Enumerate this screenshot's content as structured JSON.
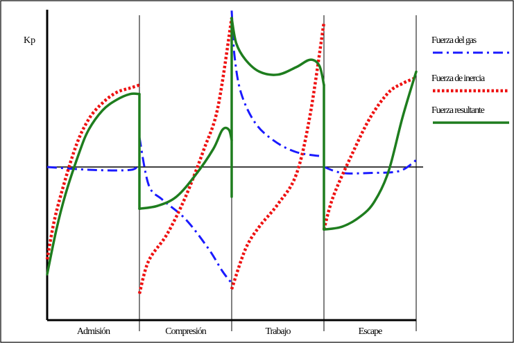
{
  "chart_data": {
    "type": "line",
    "ylabel": "Kp",
    "xlabel": "",
    "title": "",
    "categories": [
      "Admisión",
      "Compresión",
      "Trabajo",
      "Escape"
    ],
    "x": [
      0,
      0.05,
      0.1,
      0.15,
      0.2,
      0.25,
      0.3,
      0.35,
      0.4,
      0.45,
      0.5,
      0.55,
      0.6,
      0.65,
      0.7,
      0.75,
      0.8,
      0.85,
      0.9,
      0.95,
      1.0,
      1.05,
      1.1,
      1.15,
      1.2,
      1.25,
      1.3,
      1.35,
      1.4,
      1.45,
      1.5,
      1.55,
      1.6,
      1.65,
      1.7,
      1.75,
      1.8,
      1.85,
      1.9,
      1.95,
      2.0,
      2.05,
      2.1,
      2.15,
      2.2,
      2.25,
      2.3,
      2.35,
      2.4,
      2.45,
      2.5,
      2.55,
      2.6,
      2.65,
      2.7,
      2.75,
      2.8,
      2.85,
      2.9,
      2.95,
      3.0,
      3.05,
      3.1,
      3.15,
      3.2,
      3.25,
      3.3,
      3.35,
      3.4,
      3.45,
      3.5,
      3.55,
      3.6,
      3.65,
      3.7,
      3.75,
      3.8,
      3.85,
      3.9,
      3.95,
      4.0
    ],
    "ylim": [
      -1.0,
      1.0
    ],
    "series": [
      {
        "name": "Fuerza del gas",
        "color": "#1a1aff",
        "dash": "dashdot",
        "segments": [
          {
            "x": [
              0.0,
              0.5,
              0.9,
              0.98,
              1.0
            ],
            "y": [
              0.0,
              -0.02,
              -0.02,
              0.01,
              0.02
            ]
          },
          {
            "x": [
              1.0,
              1.1,
              1.25,
              1.5,
              1.75,
              1.9,
              2.0
            ],
            "y": [
              0.2,
              -0.12,
              -0.22,
              -0.35,
              -0.55,
              -0.7,
              -0.78
            ]
          },
          {
            "x": [
              2.0,
              2.03,
              2.1,
              2.25,
              2.45,
              2.7,
              3.0
            ],
            "y": [
              1.05,
              0.75,
              0.5,
              0.3,
              0.18,
              0.1,
              0.07
            ]
          },
          {
            "x": [
              3.0,
              3.2,
              3.5,
              3.8,
              3.95,
              4.0
            ],
            "y": [
              0.0,
              -0.04,
              -0.04,
              -0.03,
              0.02,
              0.05
            ]
          }
        ]
      },
      {
        "name": "Fuerza de inercia",
        "color": "#ee1111",
        "dash": "dotted",
        "segments": [
          {
            "x": [
              0.0,
              0.1,
              0.3,
              0.45,
              0.6,
              0.75,
              0.9,
              1.0
            ],
            "y": [
              -0.62,
              -0.3,
              0.12,
              0.32,
              0.43,
              0.5,
              0.53,
              0.55
            ]
          },
          {
            "x": [
              1.0,
              1.1,
              1.3,
              1.5,
              1.7,
              1.85,
              2.0
            ],
            "y": [
              -0.85,
              -0.63,
              -0.45,
              -0.2,
              0.12,
              0.4,
              1.0
            ]
          },
          {
            "x": [
              2.0,
              2.15,
              2.3,
              2.5,
              2.7,
              2.85,
              3.0
            ],
            "y": [
              -0.82,
              -0.55,
              -0.4,
              -0.25,
              -0.05,
              0.35,
              0.97
            ]
          },
          {
            "x": [
              3.0,
              3.1,
              3.3,
              3.5,
              3.7,
              3.85,
              4.0
            ],
            "y": [
              -0.42,
              -0.2,
              0.08,
              0.33,
              0.5,
              0.56,
              0.6
            ]
          }
        ]
      },
      {
        "name": "Fuerza resultante",
        "color": "#1e7d1e",
        "dash": "solid",
        "segments": [
          {
            "x": [
              0.0,
              0.1,
              0.2,
              0.35,
              0.45,
              0.6,
              0.75,
              0.9,
              1.0
            ],
            "y": [
              -0.72,
              -0.42,
              -0.18,
              0.1,
              0.25,
              0.38,
              0.45,
              0.49,
              0.49
            ]
          },
          {
            "x": [
              1.0,
              1.0
            ],
            "y": [
              0.49,
              -0.28
            ]
          },
          {
            "x": [
              1.0,
              1.2,
              1.4,
              1.6,
              1.8,
              1.9,
              1.97,
              2.0
            ],
            "y": [
              -0.28,
              -0.26,
              -0.2,
              -0.06,
              0.12,
              0.25,
              0.25,
              0.18
            ]
          },
          {
            "x": [
              2.0,
              2.0
            ],
            "y": [
              -0.2,
              1.0
            ]
          },
          {
            "x": [
              2.0,
              2.05,
              2.15,
              2.3,
              2.5,
              2.7,
              2.85,
              2.95,
              3.0
            ],
            "y": [
              1.0,
              0.83,
              0.72,
              0.64,
              0.62,
              0.67,
              0.72,
              0.68,
              0.55
            ]
          },
          {
            "x": [
              3.0,
              3.0
            ],
            "y": [
              0.55,
              -0.42
            ]
          },
          {
            "x": [
              3.0,
              3.2,
              3.4,
              3.55,
              3.7,
              3.85,
              4.0
            ],
            "y": [
              -0.42,
              -0.4,
              -0.33,
              -0.23,
              -0.03,
              0.33,
              0.64
            ]
          }
        ]
      }
    ]
  }
}
